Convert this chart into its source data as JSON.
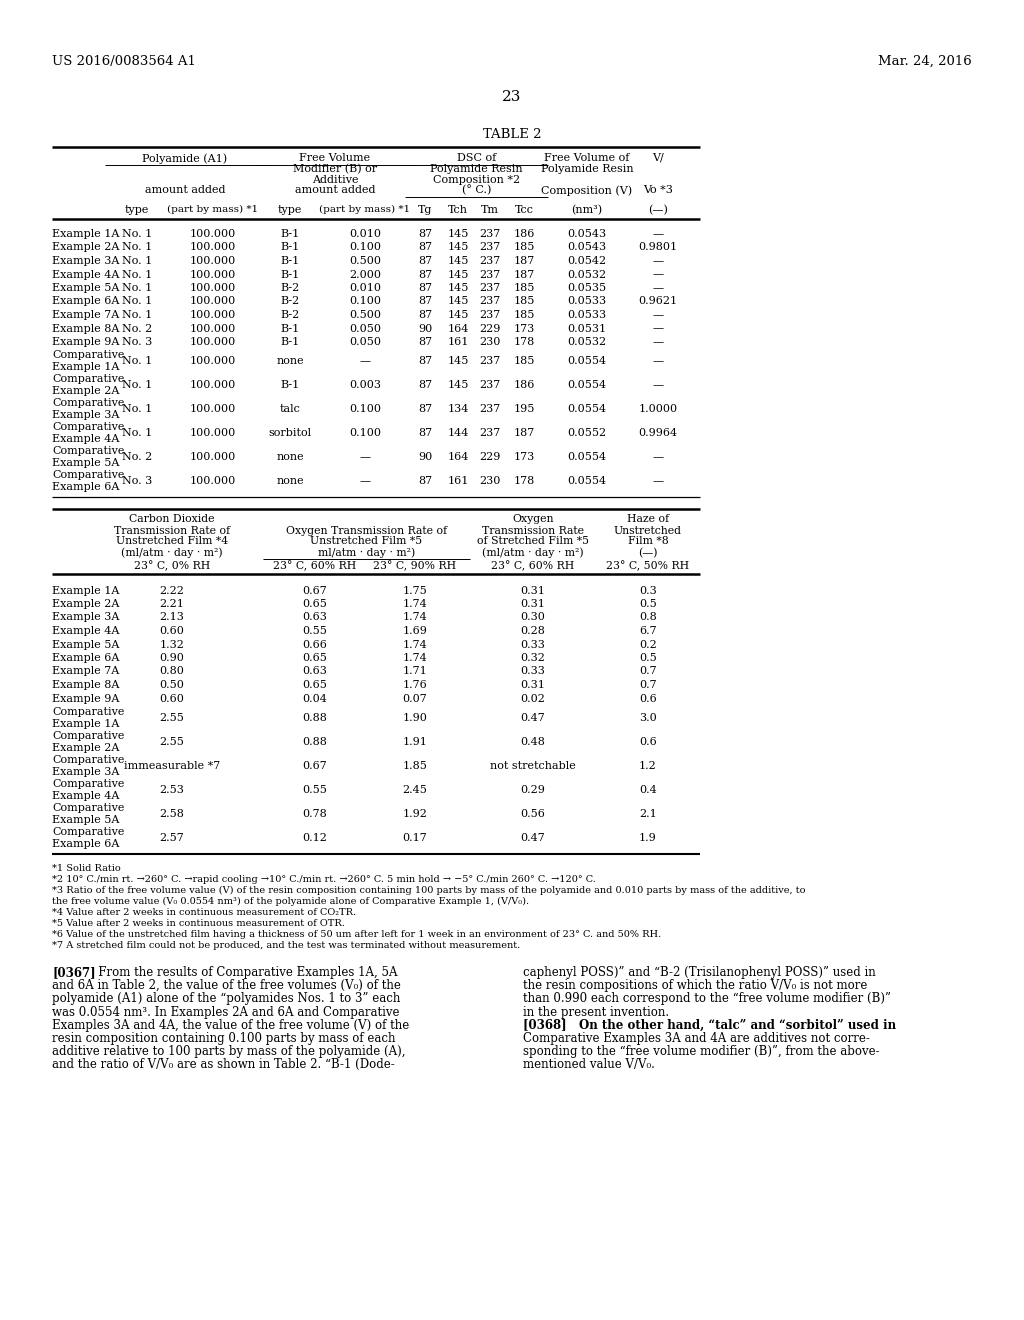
{
  "header_left": "US 2016/0083564 A1",
  "header_right": "Mar. 24, 2016",
  "page_number": "23",
  "table_title": "TABLE 2",
  "background_color": "#ffffff",
  "table1_rows": [
    [
      "Example 1A",
      "No. 1",
      "100.000",
      "B-1",
      "0.010",
      "87",
      "145",
      "237",
      "186",
      "0.0543",
      "—"
    ],
    [
      "Example 2A",
      "No. 1",
      "100.000",
      "B-1",
      "0.100",
      "87",
      "145",
      "237",
      "185",
      "0.0543",
      "0.9801"
    ],
    [
      "Example 3A",
      "No. 1",
      "100.000",
      "B-1",
      "0.500",
      "87",
      "145",
      "237",
      "187",
      "0.0542",
      "—"
    ],
    [
      "Example 4A",
      "No. 1",
      "100.000",
      "B-1",
      "2.000",
      "87",
      "145",
      "237",
      "187",
      "0.0532",
      "—"
    ],
    [
      "Example 5A",
      "No. 1",
      "100.000",
      "B-2",
      "0.010",
      "87",
      "145",
      "237",
      "185",
      "0.0535",
      "—"
    ],
    [
      "Example 6A",
      "No. 1",
      "100.000",
      "B-2",
      "0.100",
      "87",
      "145",
      "237",
      "185",
      "0.0533",
      "0.9621"
    ],
    [
      "Example 7A",
      "No. 1",
      "100.000",
      "B-2",
      "0.500",
      "87",
      "145",
      "237",
      "185",
      "0.0533",
      "—"
    ],
    [
      "Example 8A",
      "No. 2",
      "100.000",
      "B-1",
      "0.050",
      "90",
      "164",
      "229",
      "173",
      "0.0531",
      "—"
    ],
    [
      "Example 9A",
      "No. 3",
      "100.000",
      "B-1",
      "0.050",
      "87",
      "161",
      "230",
      "178",
      "0.0532",
      "—"
    ],
    [
      "Comparative\nExample 1A",
      "No. 1",
      "100.000",
      "none",
      "—",
      "87",
      "145",
      "237",
      "185",
      "0.0554",
      "—"
    ],
    [
      "Comparative\nExample 2A",
      "No. 1",
      "100.000",
      "B-1",
      "0.003",
      "87",
      "145",
      "237",
      "186",
      "0.0554",
      "—"
    ],
    [
      "Comparative\nExample 3A",
      "No. 1",
      "100.000",
      "talc",
      "0.100",
      "87",
      "134",
      "237",
      "195",
      "0.0554",
      "1.0000"
    ],
    [
      "Comparative\nExample 4A",
      "No. 1",
      "100.000",
      "sorbitol",
      "0.100",
      "87",
      "144",
      "237",
      "187",
      "0.0552",
      "0.9964"
    ],
    [
      "Comparative\nExample 5A",
      "No. 2",
      "100.000",
      "none",
      "—",
      "90",
      "164",
      "229",
      "173",
      "0.0554",
      "—"
    ],
    [
      "Comparative\nExample 6A",
      "No. 3",
      "100.000",
      "none",
      "—",
      "87",
      "161",
      "230",
      "178",
      "0.0554",
      "—"
    ]
  ],
  "table2_rows": [
    [
      "Example 1A",
      "2.22",
      "0.67",
      "1.75",
      "0.31",
      "0.3"
    ],
    [
      "Example 2A",
      "2.21",
      "0.65",
      "1.74",
      "0.31",
      "0.5"
    ],
    [
      "Example 3A",
      "2.13",
      "0.63",
      "1.74",
      "0.30",
      "0.8"
    ],
    [
      "Example 4A",
      "0.60",
      "0.55",
      "1.69",
      "0.28",
      "6.7"
    ],
    [
      "Example 5A",
      "1.32",
      "0.66",
      "1.74",
      "0.33",
      "0.2"
    ],
    [
      "Example 6A",
      "0.90",
      "0.65",
      "1.74",
      "0.32",
      "0.5"
    ],
    [
      "Example 7A",
      "0.80",
      "0.63",
      "1.71",
      "0.33",
      "0.7"
    ],
    [
      "Example 8A",
      "0.50",
      "0.65",
      "1.76",
      "0.31",
      "0.7"
    ],
    [
      "Example 9A",
      "0.60",
      "0.04",
      "0.07",
      "0.02",
      "0.6"
    ],
    [
      "Comparative\nExample 1A",
      "2.55",
      "0.88",
      "1.90",
      "0.47",
      "3.0"
    ],
    [
      "Comparative\nExample 2A",
      "2.55",
      "0.88",
      "1.91",
      "0.48",
      "0.6"
    ],
    [
      "Comparative\nExample 3A",
      "immeasurable *7",
      "0.67",
      "1.85",
      "not stretchable",
      "1.2"
    ],
    [
      "Comparative\nExample 4A",
      "2.53",
      "0.55",
      "2.45",
      "0.29",
      "0.4"
    ],
    [
      "Comparative\nExample 5A",
      "2.58",
      "0.78",
      "1.92",
      "0.56",
      "2.1"
    ],
    [
      "Comparative\nExample 6A",
      "2.57",
      "0.12",
      "0.17",
      "0.47",
      "1.9"
    ]
  ],
  "footnotes": [
    "*1 Solid Ratio",
    "*2 10° C./min rt. →260° C. →rapid cooling →10° C./min rt. →260° C. 5 min hold → −5° C./min 260° C. →120° C.",
    "*3 Ratio of the free volume value (V) of the resin composition containing 100 parts by mass of the polyamide and 0.010 parts by mass of the additive, to",
    "the free volume value (V₀ 0.0554 nm³) of the polyamide alone of Comparative Example 1, (V/V₀).",
    "*4 Value after 2 weeks in continuous measurement of CO₂TR.",
    "*5 Value after 2 weeks in continuous measurement of OTR.",
    "*6 Value of the unstretched film having a thickness of 50 um after left for 1 week in an environment of 23° C. and 50% RH.",
    "*7 A stretched film could not be produced, and the test was terminated without measurement."
  ],
  "body_left": [
    [
      "[0367]",
      "   From the results of Comparative Examples 1A, 5A"
    ],
    [
      "",
      "and 6A in Table 2, the value of the free volumes (V₀) of the"
    ],
    [
      "",
      "polyamide (A1) alone of the “polyamides Nos. 1 to 3” each"
    ],
    [
      "",
      "was 0.0554 nm³. In Examples 2A and 6A and Comparative"
    ],
    [
      "",
      "Examples 3A and 4A, the value of the free volume (V) of the"
    ],
    [
      "",
      "resin composition containing 0.100 parts by mass of each"
    ],
    [
      "",
      "additive relative to 100 parts by mass of the polyamide (A),"
    ],
    [
      "",
      "and the ratio of V/V₀ are as shown in Table 2. “B-1 (Dode-"
    ]
  ],
  "body_right": [
    "caphenyl POSS)” and “B-2 (Trisilanophenyl POSS)” used in",
    "the resin compositions of which the ratio V/V₀ is not more",
    "than 0.990 each correspond to the “free volume modifier (B)”",
    "in the present invention.",
    "[0368]   On the other hand, “talc” and “sorbitol” used in",
    "Comparative Examples 3A and 4A are additives not corre-",
    "sponding to the “free volume modifier (B)”, from the above-",
    "mentioned value V/V₀."
  ]
}
